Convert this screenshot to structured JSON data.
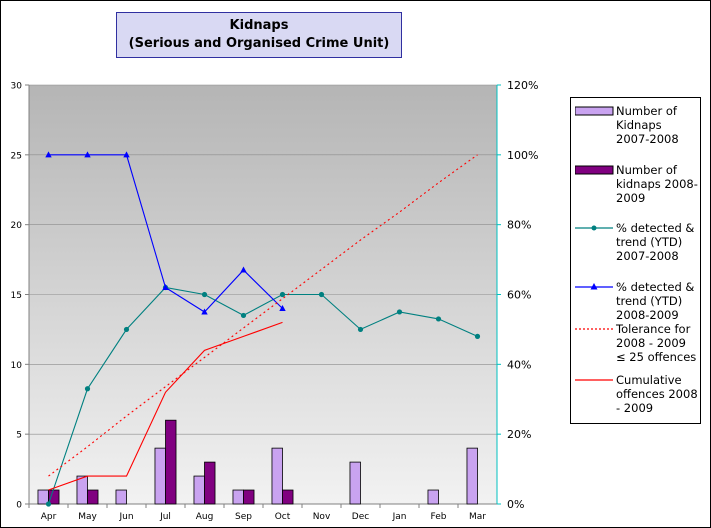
{
  "chart_data": {
    "type": "bar",
    "title": "Kidnaps",
    "subtitle": "(Serious and Organised Crime Unit)",
    "categories": [
      "Apr",
      "May",
      "Jun",
      "Jul",
      "Aug",
      "Sep",
      "Oct",
      "Nov",
      "Dec",
      "Jan",
      "Feb",
      "Mar"
    ],
    "y_left": {
      "range": [
        0,
        30
      ],
      "ticks": [
        "0",
        "5",
        "10",
        "15",
        "20",
        "25",
        "30"
      ]
    },
    "y_right": {
      "range": [
        0,
        120
      ],
      "ticks": [
        "0%",
        "20%",
        "40%",
        "60%",
        "80%",
        "100%",
        "120%"
      ]
    },
    "series": [
      {
        "name": "Number of Kidnaps 2007-2008",
        "type": "bar",
        "axis": "left",
        "color": "#c9a3f0",
        "values": [
          1,
          2,
          1,
          4,
          2,
          1,
          4,
          0,
          3,
          0,
          1,
          4
        ]
      },
      {
        "name": "Number of kidnaps 2008-2009",
        "type": "bar",
        "axis": "left",
        "color": "#800080",
        "values": [
          1,
          1,
          0,
          6,
          3,
          1,
          1,
          null,
          null,
          null,
          null,
          null
        ]
      },
      {
        "name": "% detected & trend (YTD) 2007-2008",
        "type": "line",
        "axis": "right",
        "color": "#008080",
        "marker": "circle",
        "values": [
          0,
          33,
          50,
          62,
          60,
          54,
          60,
          60,
          50,
          55,
          53,
          48
        ]
      },
      {
        "name": "% detected & trend (YTD) 2008-2009",
        "type": "line",
        "axis": "right",
        "color": "#0000ff",
        "marker": "triangle",
        "values": [
          100,
          100,
          100,
          62,
          55,
          67,
          56,
          null,
          null,
          null,
          null,
          null
        ]
      },
      {
        "name": "Tolerance for 2008 - 2009 ≤ 25 offences",
        "type": "line",
        "axis": "left",
        "color": "#ff0000",
        "dash": "dotted",
        "values": [
          2,
          4.1,
          6.3,
          8.4,
          10.5,
          12.6,
          14.7,
          16.8,
          18.9,
          20.9,
          23,
          25
        ]
      },
      {
        "name": "Cumulative offences 2008 - 2009",
        "type": "line",
        "axis": "left",
        "color": "#ff0000",
        "values": [
          1,
          2,
          2,
          8,
          11,
          12,
          13,
          null,
          null,
          null,
          null,
          null
        ]
      }
    ],
    "legend_position": "right"
  }
}
